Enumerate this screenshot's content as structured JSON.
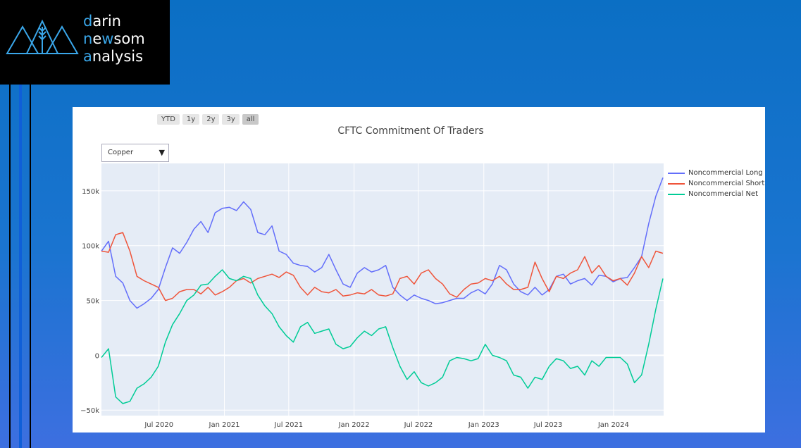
{
  "logo": {
    "line1_first": "d",
    "line1_rest": "arin",
    "line2_first": "n",
    "line2_mid": "e",
    "line2_hl": "w",
    "line2_rest": "som",
    "line3_first": "a",
    "line3_rest": "nalysis"
  },
  "range_selector": {
    "buttons": [
      "YTD",
      "1y",
      "2y",
      "3y",
      "all"
    ],
    "active": "all"
  },
  "dropdown": {
    "selected": "Copper"
  },
  "colors": {
    "long": "#636efa",
    "short": "#ef553b",
    "net": "#00cc96",
    "plot_bg": "#e5ecf6",
    "accent": "#3aa7ea"
  },
  "chart_data": {
    "type": "line",
    "title": "CFTC Commitment Of Traders",
    "xlabel": "",
    "ylabel": "",
    "ylim": [
      -55000,
      175000
    ],
    "y_ticks": [
      -50000,
      0,
      50000,
      100000,
      150000
    ],
    "y_tick_labels": [
      "−50k",
      "0",
      "50k",
      "100k",
      "150k"
    ],
    "x_range": [
      "2020-01-21",
      "2024-05-21"
    ],
    "x_ticks": [
      "2020-07-01",
      "2021-01-01",
      "2021-07-01",
      "2022-01-01",
      "2022-07-01",
      "2023-01-01",
      "2023-07-01",
      "2024-01-01"
    ],
    "x_tick_labels": [
      "Jul 2020",
      "Jan 2021",
      "Jul 2021",
      "Jan 2022",
      "Jul 2022",
      "Jan 2023",
      "Jul 2023",
      "Jan 2024"
    ],
    "legend_position": "right",
    "x": [
      "2020-01-21",
      "2020-02-10",
      "2020-03-01",
      "2020-03-21",
      "2020-04-10",
      "2020-04-30",
      "2020-05-20",
      "2020-06-09",
      "2020-06-29",
      "2020-07-19",
      "2020-08-08",
      "2020-08-28",
      "2020-09-17",
      "2020-10-07",
      "2020-10-27",
      "2020-11-16",
      "2020-12-06",
      "2020-12-26",
      "2021-01-15",
      "2021-02-04",
      "2021-02-24",
      "2021-03-16",
      "2021-04-05",
      "2021-04-25",
      "2021-05-15",
      "2021-06-04",
      "2021-06-24",
      "2021-07-14",
      "2021-08-03",
      "2021-08-23",
      "2021-09-12",
      "2021-10-02",
      "2021-10-22",
      "2021-11-11",
      "2021-12-01",
      "2021-12-21",
      "2022-01-10",
      "2022-01-30",
      "2022-02-19",
      "2022-03-11",
      "2022-03-31",
      "2022-04-20",
      "2022-05-10",
      "2022-05-30",
      "2022-06-19",
      "2022-07-09",
      "2022-07-29",
      "2022-08-18",
      "2022-09-07",
      "2022-09-27",
      "2022-10-17",
      "2022-11-06",
      "2022-11-26",
      "2022-12-16",
      "2023-01-05",
      "2023-01-25",
      "2023-02-14",
      "2023-03-06",
      "2023-03-26",
      "2023-04-15",
      "2023-05-05",
      "2023-05-25",
      "2023-06-14",
      "2023-07-04",
      "2023-07-24",
      "2023-08-13",
      "2023-09-02",
      "2023-09-22",
      "2023-10-12",
      "2023-11-01",
      "2023-11-21",
      "2023-12-11",
      "2023-12-31",
      "2024-01-20",
      "2024-02-09",
      "2024-02-29",
      "2024-03-20",
      "2024-04-09",
      "2024-04-29",
      "2024-05-19"
    ],
    "series": [
      {
        "name": "Noncommercial Long",
        "values": [
          95000,
          104000,
          72000,
          66000,
          50000,
          43000,
          47000,
          52000,
          60000,
          80000,
          98000,
          93000,
          103000,
          115000,
          122000,
          112000,
          130000,
          134000,
          135000,
          132000,
          140000,
          133000,
          112000,
          110000,
          118000,
          95000,
          92000,
          84000,
          82000,
          81000,
          76000,
          80000,
          92000,
          78000,
          65000,
          62000,
          75000,
          80000,
          76000,
          78000,
          82000,
          62000,
          55000,
          50000,
          55000,
          52000,
          50000,
          47000,
          48000,
          50000,
          52000,
          52000,
          57000,
          60000,
          56000,
          65000,
          82000,
          78000,
          65000,
          58000,
          55000,
          62000,
          55000,
          60000,
          72000,
          74000,
          65000,
          68000,
          70000,
          64000,
          73000,
          72000,
          67000,
          70000,
          71000,
          80000,
          90000,
          120000,
          145000,
          162000
        ]
      },
      {
        "name": "Noncommercial Short",
        "values": [
          95000,
          94000,
          110000,
          112000,
          95000,
          72000,
          68000,
          65000,
          62000,
          50000,
          52000,
          58000,
          60000,
          60000,
          56000,
          62000,
          55000,
          58000,
          62000,
          68000,
          70000,
          66000,
          70000,
          72000,
          74000,
          71000,
          76000,
          73000,
          62000,
          55000,
          62000,
          58000,
          57000,
          60000,
          54000,
          55000,
          57000,
          56000,
          60000,
          55000,
          54000,
          56000,
          70000,
          72000,
          65000,
          75000,
          78000,
          70000,
          65000,
          56000,
          53000,
          60000,
          65000,
          66000,
          70000,
          68000,
          72000,
          65000,
          60000,
          60000,
          62000,
          85000,
          70000,
          58000,
          72000,
          70000,
          75000,
          78000,
          90000,
          75000,
          82000,
          72000,
          68000,
          70000,
          64000,
          75000,
          90000,
          80000,
          95000,
          93000
        ]
      },
      {
        "name": "Noncommercial Net",
        "values": [
          -2000,
          6000,
          -38000,
          -44000,
          -42000,
          -30000,
          -26000,
          -20000,
          -10000,
          12000,
          28000,
          38000,
          50000,
          55000,
          64000,
          65000,
          72000,
          78000,
          70000,
          68000,
          72000,
          70000,
          55000,
          45000,
          38000,
          26000,
          18000,
          12000,
          26000,
          30000,
          20000,
          22000,
          24000,
          10000,
          6000,
          8000,
          16000,
          22000,
          18000,
          24000,
          26000,
          7000,
          -10000,
          -22000,
          -15000,
          -25000,
          -28000,
          -25000,
          -20000,
          -5000,
          -2000,
          -3000,
          -5000,
          -3000,
          10000,
          0,
          -2000,
          -5000,
          -18000,
          -20000,
          -30000,
          -20000,
          -22000,
          -10000,
          -3000,
          -5000,
          -12000,
          -10000,
          -18000,
          -5000,
          -10000,
          -2000,
          -2000,
          -2000,
          -8000,
          -25000,
          -18000,
          10000,
          42000,
          70000
        ]
      }
    ]
  }
}
